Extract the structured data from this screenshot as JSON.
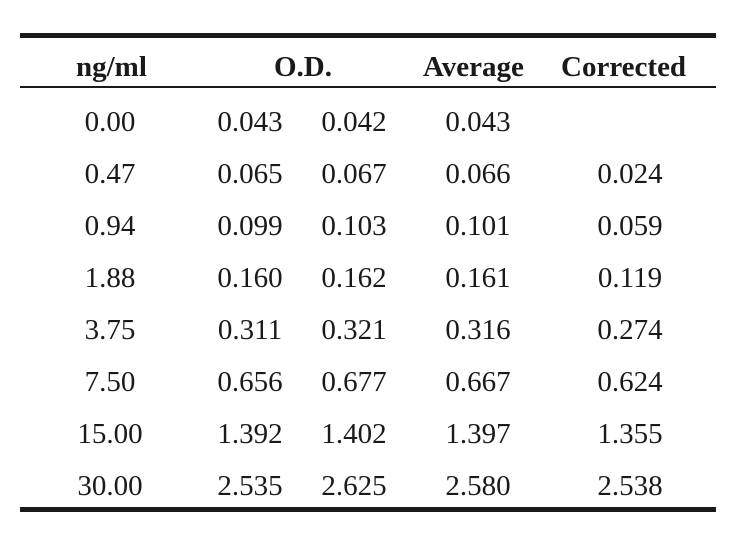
{
  "table": {
    "headers": {
      "concentration": "ng/ml",
      "od": "O.D.",
      "average": "Average",
      "corrected": "Corrected"
    },
    "rows": [
      {
        "concentration": "0.00",
        "od1": "0.043",
        "od2": "0.042",
        "average": "0.043",
        "corrected": ""
      },
      {
        "concentration": "0.47",
        "od1": "0.065",
        "od2": "0.067",
        "average": "0.066",
        "corrected": "0.024"
      },
      {
        "concentration": "0.94",
        "od1": "0.099",
        "od2": "0.103",
        "average": "0.101",
        "corrected": "0.059"
      },
      {
        "concentration": "1.88",
        "od1": "0.160",
        "od2": "0.162",
        "average": "0.161",
        "corrected": "0.119"
      },
      {
        "concentration": "3.75",
        "od1": "0.311",
        "od2": "0.321",
        "average": "0.316",
        "corrected": "0.274"
      },
      {
        "concentration": "7.50",
        "od1": "0.656",
        "od2": "0.677",
        "average": "0.667",
        "corrected": "0.624"
      },
      {
        "concentration": "15.00",
        "od1": "1.392",
        "od2": "1.402",
        "average": "1.397",
        "corrected": "1.355"
      },
      {
        "concentration": "30.00",
        "od1": "2.535",
        "od2": "2.625",
        "average": "2.580",
        "corrected": "2.538"
      }
    ]
  }
}
